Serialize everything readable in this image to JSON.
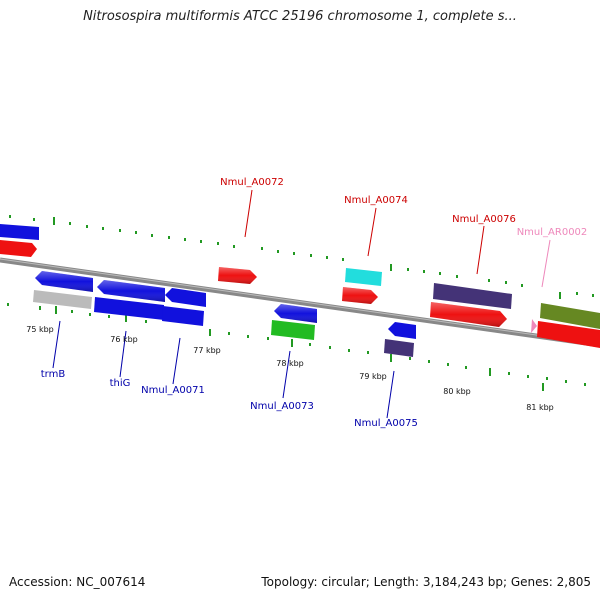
{
  "title": "Nitrosospira multiformis ATCC 25196 chromosome 1, complete s...",
  "footer": {
    "accession": "Accession: NC_007614",
    "summary": "Topology: circular; Length: 3,184,243 bp; Genes: 2,805"
  },
  "ruler": [
    "75 kbp",
    "76 kbp",
    "77 kbp",
    "78 kbp",
    "79 kbp",
    "80 kbp",
    "81 kbp"
  ],
  "gene_labels": {
    "top": [
      "Nmul_A0072",
      "Nmul_A0074",
      "Nmul_A0076",
      "Nmul_AR0002"
    ],
    "bottom": [
      "trmB",
      "thiG",
      "Nmul_A0071",
      "Nmul_A0073",
      "Nmul_A0075"
    ]
  },
  "colors": {
    "forward_cds": "#ee1111",
    "reverse_cds": "#1111dd",
    "rna": "#22bb22",
    "other": "#22dddd",
    "pseudo": "#bbbbbb",
    "dark_feature": "#443377",
    "olive_feature": "#668822",
    "label_top": "#cc0000",
    "label_bottom": "#0000aa",
    "label_rna": "#ee88bb",
    "tick": "#229922",
    "backbone": "#888888"
  }
}
